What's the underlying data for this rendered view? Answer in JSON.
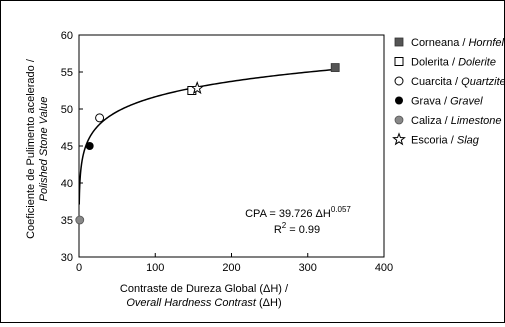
{
  "chart_data": {
    "type": "scatter",
    "xlabel_line1": "Contraste de Dureza Global (ΔH) /",
    "xlabel_line2_italic": "Overall Hardness Contrast",
    "xlabel_line2_suffix": " (ΔH)",
    "ylabel_line1": "Coeficiente de Pulimento acelerado /",
    "ylabel_line2_italic": "Polished Stone Value",
    "xlim": [
      0,
      400
    ],
    "ylim": [
      30,
      60
    ],
    "xticks": [
      0,
      100,
      200,
      300,
      400
    ],
    "yticks": [
      30,
      35,
      40,
      45,
      50,
      55,
      60
    ],
    "grid": false,
    "legend_position": "right",
    "series": [
      {
        "name_es": "Corneana",
        "name_en": "Hornfels",
        "marker": "square-filled",
        "color": "#555555",
        "points": [
          {
            "x": 336,
            "y": 55.6
          }
        ]
      },
      {
        "name_es": "Dolerita",
        "name_en": "Dolerite",
        "marker": "square-open",
        "color": "#000000",
        "points": [
          {
            "x": 148,
            "y": 52.5
          }
        ]
      },
      {
        "name_es": "Cuarcita",
        "name_en": "Quartzite",
        "marker": "circle-open",
        "color": "#000000",
        "points": [
          {
            "x": 27,
            "y": 48.8
          }
        ]
      },
      {
        "name_es": "Grava",
        "name_en": "Gravel",
        "marker": "circle-filled",
        "color": "#000000",
        "points": [
          {
            "x": 14,
            "y": 45
          }
        ]
      },
      {
        "name_es": "Caliza",
        "name_en": "Limestone",
        "marker": "circle-gray",
        "color": "#888888",
        "points": [
          {
            "x": 1,
            "y": 35
          }
        ]
      },
      {
        "name_es": "Escoria",
        "name_en": "Slag",
        "marker": "star-open",
        "color": "#000000",
        "points": [
          {
            "x": 155,
            "y": 52.8
          }
        ]
      }
    ],
    "fit": {
      "a": 39.726,
      "b": 0.057
    },
    "annotation": {
      "eq_prefix": "CPA = 39.726 ΔH",
      "eq_exponent": "0.057",
      "r2_prefix": "R",
      "r2_sup": "2",
      "r2_suffix": " = 0.99"
    }
  }
}
